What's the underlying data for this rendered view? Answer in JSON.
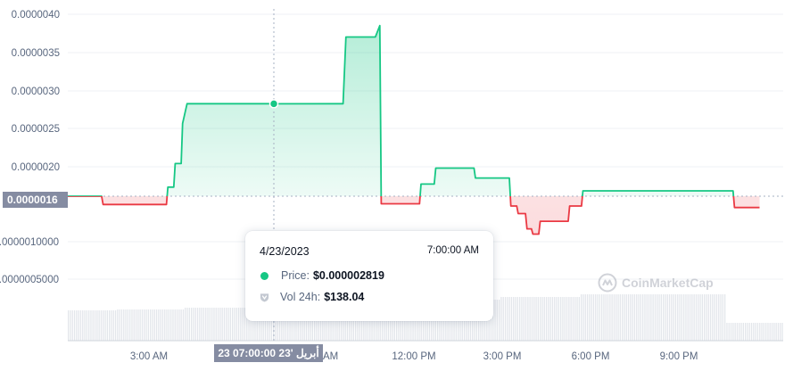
{
  "chart_data": {
    "type": "line",
    "y_ticks": [
      "0.0000040",
      "0.0000035",
      "0.0000030",
      "0.0000025",
      "0.0000020",
      "0.0000010000",
      "0.0000005000"
    ],
    "x_ticks": [
      "3:00 AM",
      "9:00 AM",
      "12:00 PM",
      "3:00 PM",
      "6:00 PM",
      "9:00 PM"
    ],
    "reference_price": 1.6e-06,
    "reference_price_label": "0.0000016",
    "ylim": [
      8e-07,
      4e-06
    ],
    "x_unit": "hours since midnight, 4/23/2023",
    "series": [
      {
        "values": [
          [
            0.0,
            1.6e-06
          ],
          [
            1.15,
            1.6e-06
          ],
          [
            1.2,
            1.49e-06
          ],
          [
            3.35,
            1.49e-06
          ],
          [
            3.4,
            1.72e-06
          ],
          [
            3.6,
            1.72e-06
          ],
          [
            3.65,
            2.03e-06
          ],
          [
            3.85,
            2.03e-06
          ],
          [
            3.9,
            2.56e-06
          ],
          [
            4.05,
            2.82e-06
          ],
          [
            6.5,
            2.82e-06
          ],
          [
            6.9,
            2.82e-06
          ],
          [
            7.0,
            2.819e-06
          ],
          [
            9.35,
            2.82e-06
          ],
          [
            9.45,
            3.7e-06
          ],
          [
            10.45,
            3.7e-06
          ],
          [
            10.6,
            3.85e-06
          ],
          [
            10.65,
            1.5e-06
          ],
          [
            11.95,
            1.5e-06
          ],
          [
            12.0,
            1.76e-06
          ],
          [
            12.45,
            1.76e-06
          ],
          [
            12.5,
            1.97e-06
          ],
          [
            13.8,
            1.97e-06
          ],
          [
            13.85,
            1.84e-06
          ],
          [
            15.0,
            1.84e-06
          ],
          [
            15.05,
            1.47e-06
          ],
          [
            15.25,
            1.47e-06
          ],
          [
            15.3,
            1.37e-06
          ],
          [
            15.55,
            1.37e-06
          ],
          [
            15.6,
            1.17e-06
          ],
          [
            15.75,
            1.17e-06
          ],
          [
            15.8,
            1.1e-06
          ],
          [
            16.0,
            1.1e-06
          ],
          [
            16.05,
            1.27e-06
          ],
          [
            17.0,
            1.27e-06
          ],
          [
            17.05,
            1.47e-06
          ],
          [
            17.45,
            1.47e-06
          ],
          [
            17.5,
            1.67e-06
          ],
          [
            22.6,
            1.67e-06
          ],
          [
            22.65,
            1.45e-06
          ],
          [
            23.5,
            1.45e-06
          ]
        ]
      }
    ]
  },
  "tooltip": {
    "date": "4/23/2023",
    "time": "7:00:00 AM",
    "price_label": "Price:",
    "price_value": "$0.000002819",
    "vol_label": "Vol 24h:",
    "vol_value": "$138.04"
  },
  "crosshair": {
    "time_tag": "أبريل '23 07:00:00 23",
    "price_tag": "0.0000016"
  },
  "watermark": "CoinMarketCap",
  "colors": {
    "up": "#16c784",
    "down": "#ea3943",
    "axis_text": "#58667e",
    "grid": "#eff2f5"
  }
}
